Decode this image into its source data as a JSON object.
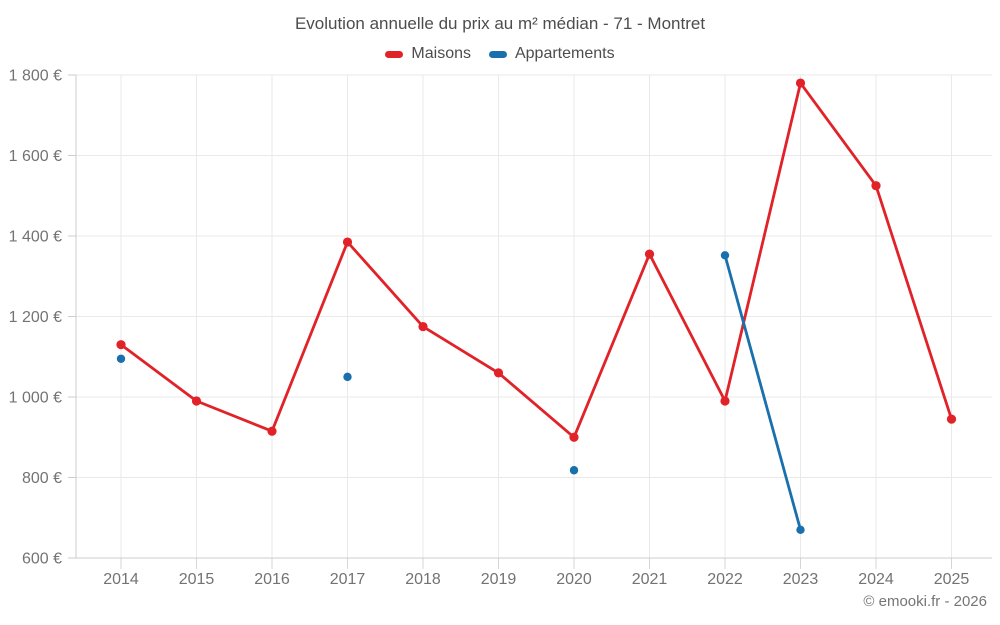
{
  "chart": {
    "title": "Evolution annuelle du prix au m² médian - 71 - Montret"
  },
  "footer": {
    "credit": "© emooki.fr - 2026"
  },
  "chart_data": {
    "type": "line",
    "title": "Evolution annuelle du prix au m² médian - 71 - Montret",
    "xlabel": "",
    "ylabel": "",
    "categories": [
      "2014",
      "2015",
      "2016",
      "2017",
      "2018",
      "2019",
      "2020",
      "2021",
      "2022",
      "2023",
      "2024",
      "2025"
    ],
    "series": [
      {
        "name": "Maisons",
        "color": "#e12228",
        "values": [
          1130,
          990,
          915,
          1385,
          1175,
          1060,
          900,
          1355,
          990,
          1780,
          1525,
          945
        ]
      },
      {
        "name": "Appartements",
        "color": "#1a70ad",
        "values": [
          1095,
          null,
          null,
          1050,
          null,
          null,
          818,
          null,
          1352,
          670,
          null,
          null
        ]
      }
    ],
    "ylim": [
      600,
      1800
    ],
    "yticks": [
      600,
      800,
      1000,
      1200,
      1400,
      1600,
      1800
    ],
    "ytick_labels": [
      "600 €",
      "800 €",
      "1 000 €",
      "1 200 €",
      "1 400 €",
      "1 600 €",
      "1 800 €"
    ],
    "grid": true,
    "legend_position": "top",
    "currency": "€"
  }
}
